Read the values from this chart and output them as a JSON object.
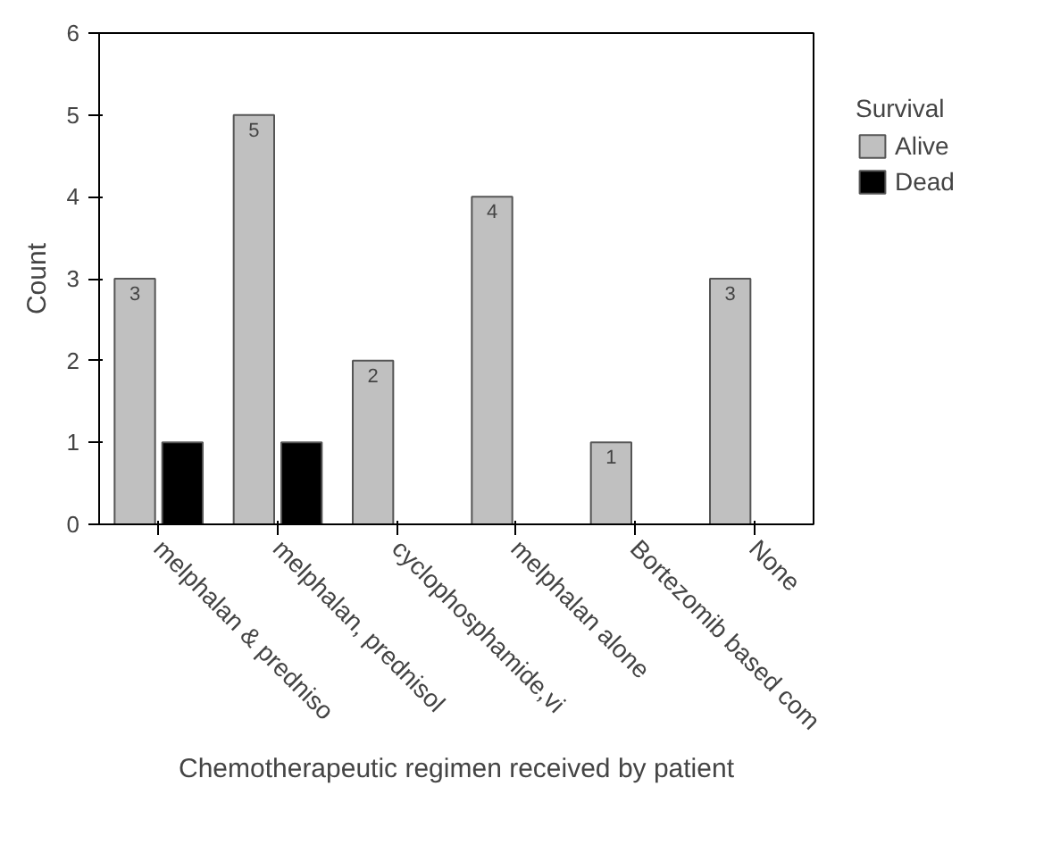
{
  "chart_data": {
    "type": "bar",
    "xlabel": "Chemotherapeutic regimen received by patient",
    "ylabel": "Count",
    "categories": [
      "melphalan & predniso",
      "melphalan, prednisol",
      "cyclophosphamide,vi",
      "melphalan alone",
      "Bortezomib based com",
      "None"
    ],
    "series": [
      {
        "name": "Alive",
        "color": "#c0c0c0",
        "values": [
          3,
          5,
          2,
          4,
          1,
          3
        ],
        "value_labels": [
          "3",
          "5",
          "2",
          "4",
          "1",
          "3"
        ]
      },
      {
        "name": "Dead",
        "color": "#000000",
        "values": [
          1,
          1,
          null,
          null,
          null,
          null
        ]
      }
    ],
    "ylim": [
      0,
      6
    ],
    "yticks": [
      0,
      1,
      2,
      3,
      4,
      5,
      6
    ],
    "grid": false,
    "legend": "right",
    "legend_title": "Survival"
  }
}
